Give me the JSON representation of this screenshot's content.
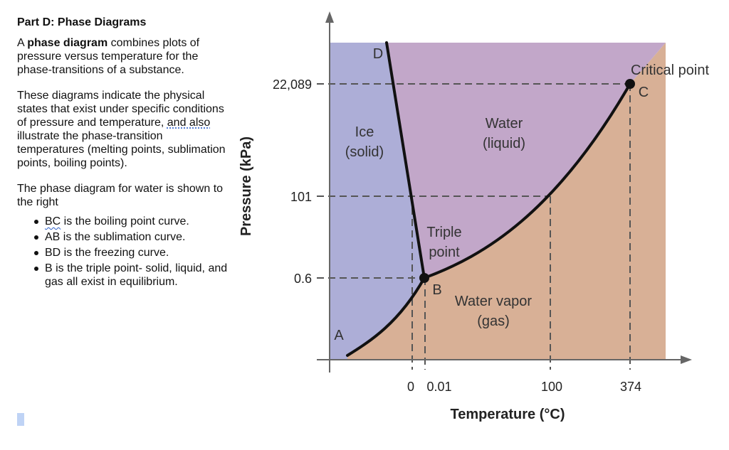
{
  "panel": {
    "heading": "Part D: Phase Diagrams",
    "p1_pre": "A ",
    "p1_bold": "phase diagram",
    "p1_post": " combines plots of pressure versus temperature for the phase-transitions of a substance.",
    "p2_pre": "These diagrams indicate the physical states that exist under specific conditions of pressure and temperature, ",
    "p2_link": "and also",
    "p2_post": " illustrate the phase-transition temperatures (melting points, sublimation points, boiling points).",
    "p3": "The phase diagram for water is shown to the right",
    "bullets": [
      {
        "mark": "BC",
        "text": " is the boiling point curve."
      },
      {
        "mark": "",
        "text": "AB is the sublimation curve."
      },
      {
        "mark": "",
        "text": "BD is the freezing curve."
      },
      {
        "mark": "",
        "text": "B is the triple point- solid, liquid, and gas all exist in equilibrium."
      }
    ]
  },
  "diagram": {
    "y_axis_label": "Pressure (kPa)",
    "x_axis_label": "Temperature (°C)",
    "y_ticks": [
      "22,089",
      "101",
      "0.6"
    ],
    "x_ticks": [
      "0",
      "0.01",
      "100",
      "374"
    ],
    "regions": {
      "ice": [
        "Ice",
        "(solid)"
      ],
      "water": [
        "Water",
        "(liquid)"
      ],
      "vapor": [
        "Water vapor",
        "(gas)"
      ],
      "triple": [
        "Triple",
        "point"
      ]
    },
    "points": {
      "A": "A",
      "B": "B",
      "C": "C",
      "D": "D",
      "critical": "Critical point"
    },
    "colors": {
      "solid": "#adaed7",
      "liquid": "#c2a7c9",
      "gas": "#d8b096",
      "curve": "#111111"
    }
  }
}
